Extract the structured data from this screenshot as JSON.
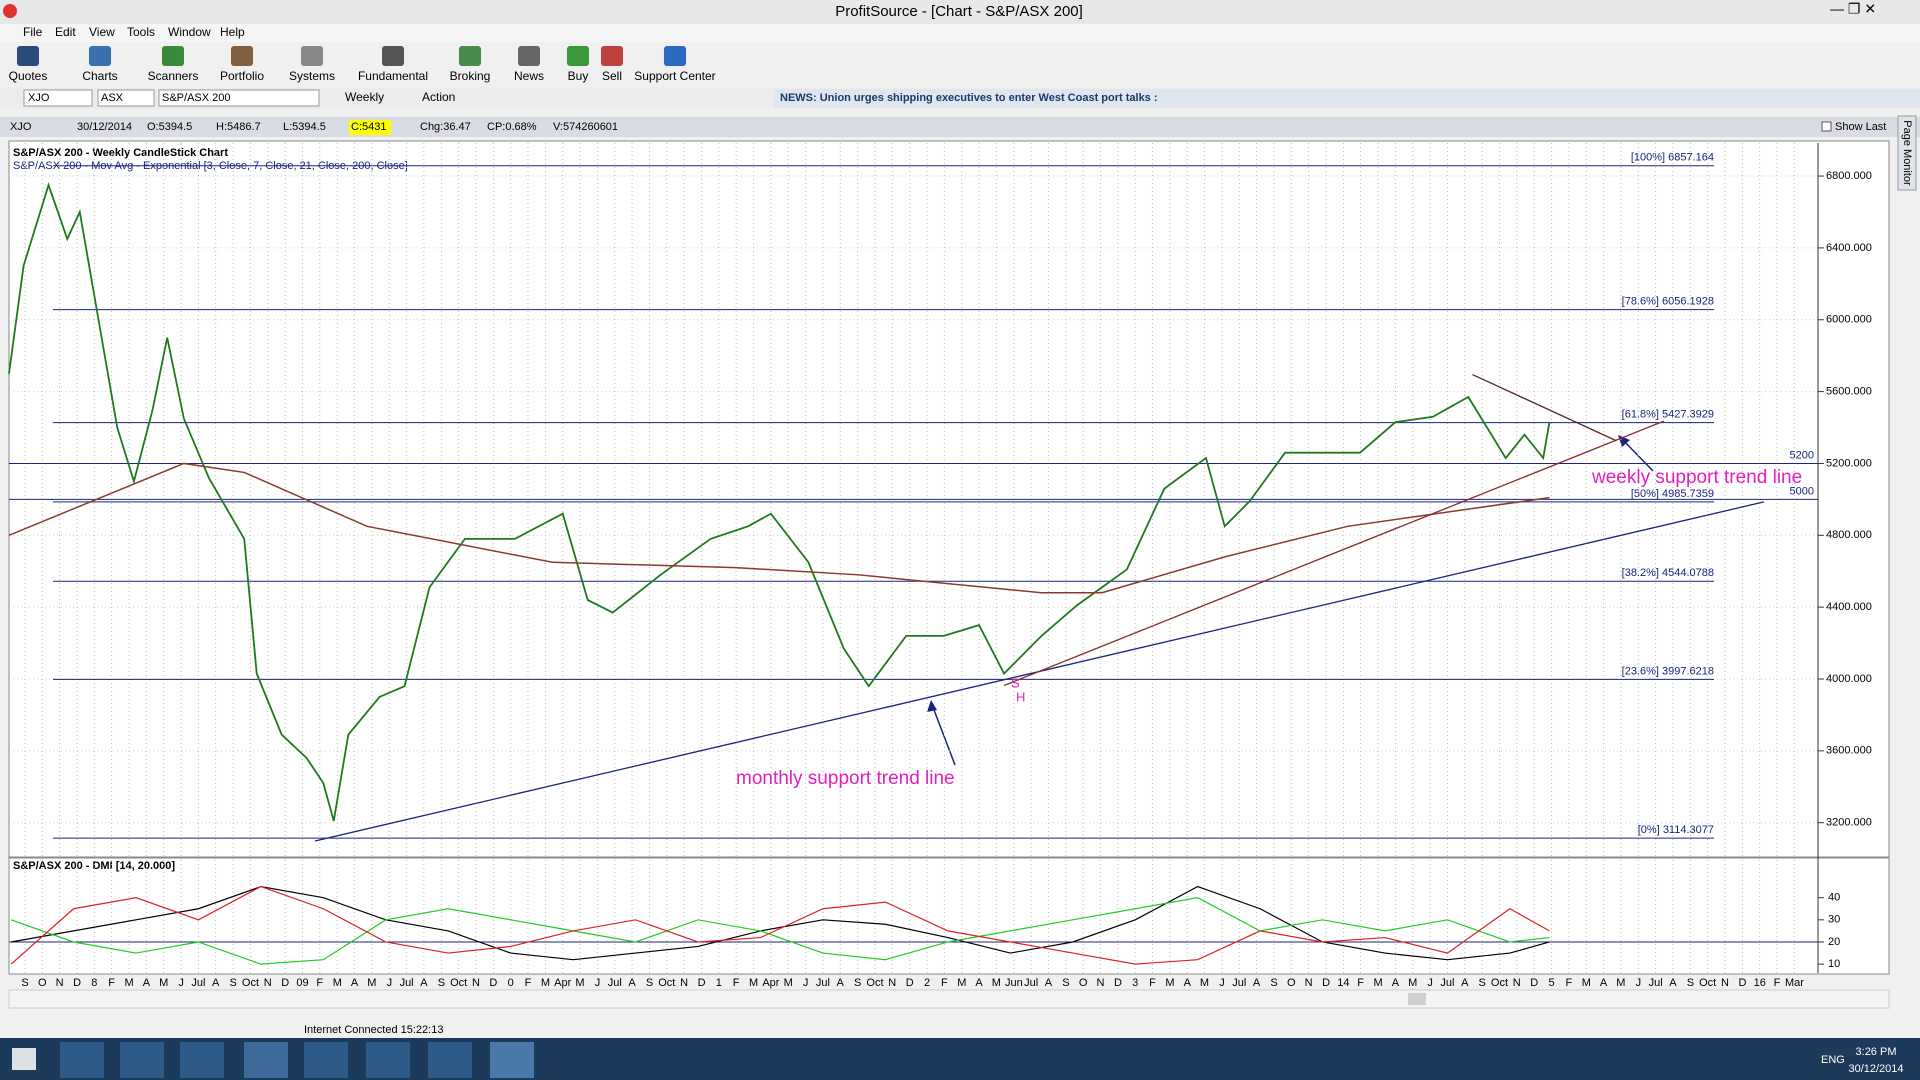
{
  "window": {
    "title": "ProfitSource - [Chart - S&P/ASX 200]"
  },
  "menu": [
    "File",
    "Edit",
    "View",
    "Tools",
    "Window",
    "Help"
  ],
  "toolbar": [
    "Quotes",
    "Charts",
    "Scanners",
    "Portfolio",
    "Systems",
    "Fundamental",
    "Broking",
    "News",
    "Buy",
    "Sell",
    "Support Center"
  ],
  "symbol_bar": {
    "code": "XJO",
    "exchange": "ASX",
    "name": "S&P/ASX 200",
    "period": "Weekly",
    "action": "Action",
    "news": "NEWS: Union urges shipping executives to enter West Coast port talks :"
  },
  "info_bar": {
    "code": "XJO",
    "date": "30/12/2014",
    "open": "O:5394.5",
    "high": "H:5486.7",
    "low": "L:5394.5",
    "close": "C:5431",
    "change": "Chg:36.47",
    "change_pct": "CP:0.68%",
    "volume": "V:574260601",
    "show_last": "Show Last"
  },
  "side_tab": "Page Monitor",
  "chart_data": [
    {
      "type": "line",
      "title": "S&P/ASX 200 - Weekly CandleStick Chart",
      "subtitle": "S&P/ASX 200 - Mov Avg - Exponential   [3, Close, 7, Close, 21, Close, 200, Close]",
      "xlim": [
        2007.59,
        2016.28
      ],
      "ylim": [
        3009,
        6984
      ],
      "yticks": [
        {
          "value": 3200,
          "label": "3200.000"
        },
        {
          "value": 3600,
          "label": "3600.000"
        },
        {
          "value": 4000,
          "label": "4000.000"
        },
        {
          "value": 4400,
          "label": "4400.000"
        },
        {
          "value": 4800,
          "label": "4800.000"
        },
        {
          "value": 5200,
          "label": "5200.000"
        },
        {
          "value": 5600,
          "label": "5600.000"
        },
        {
          "value": 6000,
          "label": "6000.000"
        },
        {
          "value": 6400,
          "label": "6400.000"
        },
        {
          "value": 6800,
          "label": "6800.000"
        }
      ],
      "grid": true,
      "series": [
        {
          "color": "#1f7a1f",
          "x": [
            2007.59,
            2007.66,
            2007.78,
            2007.87,
            2007.93,
            2008.02,
            2008.11,
            2008.19,
            2008.28,
            2008.35,
            2008.43,
            2008.55,
            2008.72,
            2008.78,
            2008.9,
            2009.02,
            2009.1,
            2009.15,
            2009.22,
            2009.37,
            2009.49,
            2009.61,
            2009.78,
            2010.02,
            2010.25,
            2010.37,
            2010.49,
            2010.72,
            2010.96,
            2011.14,
            2011.25,
            2011.43,
            2011.6,
            2011.72,
            2011.9,
            2012.08,
            2012.25,
            2012.37,
            2012.55,
            2012.72,
            2012.84,
            2012.96,
            2013.14,
            2013.34,
            2013.43,
            2013.55,
            2013.72,
            2013.9,
            2014.08,
            2014.25,
            2014.43,
            2014.6,
            2014.69,
            2014.78,
            2014.87,
            2014.96,
            2014.99
          ],
          "values": [
            5700,
            6300,
            6750,
            6450,
            6600,
            6000,
            5400,
            5100,
            5500,
            5900,
            5450,
            5120,
            4780,
            4030,
            3690,
            3560,
            3420,
            3210,
            3690,
            3900,
            3960,
            4510,
            4780,
            4780,
            4920,
            4440,
            4370,
            4580,
            4780,
            4850,
            4920,
            4650,
            4170,
            3960,
            4240,
            4240,
            4300,
            4030,
            4240,
            4410,
            4510,
            4610,
            5060,
            5230,
            4850,
            4990,
            5260,
            5260,
            5260,
            5430,
            5460,
            5570,
            5400,
            5230,
            5360,
            5230,
            5431
          ]
        },
        {
          "color": "#8b3a2a",
          "x": [
            2007.59,
            2008.43,
            2008.72,
            2009.31,
            2010.2,
            2011.08,
            2011.67,
            2012.55,
            2012.84,
            2013.43,
            2014.02,
            2014.99
          ],
          "values": [
            4800,
            5200,
            5150,
            4850,
            4650,
            4620,
            4580,
            4480,
            4480,
            4680,
            4850,
            5010
          ]
        }
      ],
      "levels": [
        {
          "value": 6857.164,
          "label": "[100%] 6857.164"
        },
        {
          "value": 6056.1928,
          "label": "[78.6%] 6056.1928"
        },
        {
          "value": 5427.3929,
          "label": "[61.8%] 5427.3929"
        },
        {
          "value": 4985.7359,
          "label": "[50%] 4985.7359"
        },
        {
          "value": 4544.0788,
          "label": "[38.2%] 4544.0788"
        },
        {
          "value": 3997.6218,
          "label": "[23.6%] 3997.6218"
        },
        {
          "value": 3114.3077,
          "label": "[0%] 3114.3077"
        }
      ],
      "hlines": [
        5200,
        5000
      ],
      "trendlines": [
        {
          "color": "#1a237e",
          "x": [
            2009.06,
            2016.02
          ],
          "y": [
            3098,
            4986
          ]
        },
        {
          "color": "#8b2a2a",
          "x": [
            2012.37,
            2015.54
          ],
          "y": [
            3964,
            5436
          ]
        },
        {
          "color": "#5a2a2a",
          "x": [
            2014.62,
            2015.31
          ],
          "y": [
            5695,
            5327
          ]
        }
      ],
      "annotations": [
        {
          "text": "monthly support trend line"
        },
        {
          "text": "weekly support trend line"
        },
        {
          "text": "S"
        },
        {
          "text": "H"
        }
      ]
    },
    {
      "type": "line",
      "title": "S&P/ASX 200 - DMI [14, 20.000]",
      "xlim": [
        2007.59,
        2016.28
      ],
      "ylim": [
        6,
        57
      ],
      "yticks": [
        10,
        20,
        30,
        40
      ],
      "threshold": 20,
      "x": [
        2007.6,
        2007.9,
        2008.2,
        2008.5,
        2008.8,
        2009.1,
        2009.4,
        2009.7,
        2010.0,
        2010.3,
        2010.6,
        2010.9,
        2011.2,
        2011.5,
        2011.8,
        2012.1,
        2012.4,
        2012.7,
        2013.0,
        2013.3,
        2013.6,
        2013.9,
        2014.2,
        2014.5,
        2014.8,
        2014.99
      ],
      "series": [
        {
          "color": "#000000",
          "values": [
            20,
            25,
            30,
            35,
            45,
            40,
            30,
            25,
            15,
            12,
            15,
            18,
            25,
            30,
            28,
            22,
            15,
            20,
            30,
            45,
            35,
            20,
            15,
            12,
            15,
            20
          ]
        },
        {
          "color": "#22cc22",
          "values": [
            30,
            20,
            15,
            20,
            10,
            12,
            30,
            35,
            30,
            25,
            20,
            30,
            25,
            15,
            12,
            20,
            25,
            30,
            35,
            40,
            25,
            30,
            25,
            30,
            20,
            22
          ]
        },
        {
          "color": "#dd2222",
          "values": [
            10,
            35,
            40,
            30,
            45,
            35,
            20,
            15,
            18,
            25,
            30,
            20,
            22,
            35,
            38,
            25,
            20,
            15,
            10,
            12,
            25,
            20,
            22,
            15,
            35,
            25
          ]
        }
      ],
      "xticks": [
        {
          "value": 2007.667,
          "label": "S"
        },
        {
          "value": 2007.75,
          "label": "O"
        },
        {
          "value": 2007.833,
          "label": "N"
        },
        {
          "value": 2007.917,
          "label": "D"
        },
        {
          "value": 2008,
          "label": "8"
        },
        {
          "value": 2008.083,
          "label": "F"
        },
        {
          "value": 2008.167,
          "label": "M"
        },
        {
          "value": 2008.25,
          "label": "A"
        },
        {
          "value": 2008.333,
          "label": "M"
        },
        {
          "value": 2008.417,
          "label": "J"
        },
        {
          "value": 2008.5,
          "label": "Jul"
        },
        {
          "value": 2008.583,
          "label": "A"
        },
        {
          "value": 2008.667,
          "label": "S"
        },
        {
          "value": 2008.75,
          "label": "Oct"
        },
        {
          "value": 2008.833,
          "label": "N"
        },
        {
          "value": 2008.917,
          "label": "D"
        },
        {
          "value": 2009,
          "label": "09"
        },
        {
          "value": 2009.083,
          "label": "F"
        },
        {
          "value": 2009.167,
          "label": "M"
        },
        {
          "value": 2009.25,
          "label": "A"
        },
        {
          "value": 2009.333,
          "label": "M"
        },
        {
          "value": 2009.417,
          "label": "J"
        },
        {
          "value": 2009.5,
          "label": "Jul"
        },
        {
          "value": 2009.583,
          "label": "A"
        },
        {
          "value": 2009.667,
          "label": "S"
        },
        {
          "value": 2009.75,
          "label": "Oct"
        },
        {
          "value": 2009.833,
          "label": "N"
        },
        {
          "value": 2009.917,
          "label": "D"
        },
        {
          "value": 2010,
          "label": "0"
        },
        {
          "value": 2010.083,
          "label": "F"
        },
        {
          "value": 2010.167,
          "label": "M"
        },
        {
          "value": 2010.25,
          "label": "Apr"
        },
        {
          "value": 2010.333,
          "label": "M"
        },
        {
          "value": 2010.417,
          "label": "J"
        },
        {
          "value": 2010.5,
          "label": "Jul"
        },
        {
          "value": 2010.583,
          "label": "A"
        },
        {
          "value": 2010.667,
          "label": "S"
        },
        {
          "value": 2010.75,
          "label": "Oct"
        },
        {
          "value": 2010.833,
          "label": "N"
        },
        {
          "value": 2010.917,
          "label": "D"
        },
        {
          "value": 2011,
          "label": "1"
        },
        {
          "value": 2011.083,
          "label": "F"
        },
        {
          "value": 2011.167,
          "label": "M"
        },
        {
          "value": 2011.25,
          "label": "Apr"
        },
        {
          "value": 2011.333,
          "label": "M"
        },
        {
          "value": 2011.417,
          "label": "J"
        },
        {
          "value": 2011.5,
          "label": "Jul"
        },
        {
          "value": 2011.583,
          "label": "A"
        },
        {
          "value": 2011.667,
          "label": "S"
        },
        {
          "value": 2011.75,
          "label": "Oct"
        },
        {
          "value": 2011.833,
          "label": "N"
        },
        {
          "value": 2011.917,
          "label": "D"
        },
        {
          "value": 2012,
          "label": "2"
        },
        {
          "value": 2012.083,
          "label": "F"
        },
        {
          "value": 2012.167,
          "label": "M"
        },
        {
          "value": 2012.25,
          "label": "A"
        },
        {
          "value": 2012.333,
          "label": "M"
        },
        {
          "value": 2012.417,
          "label": "Jun"
        },
        {
          "value": 2012.5,
          "label": "Jul"
        },
        {
          "value": 2012.583,
          "label": "A"
        },
        {
          "value": 2012.667,
          "label": "S"
        },
        {
          "value": 2012.75,
          "label": "O"
        },
        {
          "value": 2012.833,
          "label": "N"
        },
        {
          "value": 2012.917,
          "label": "D"
        },
        {
          "value": 2013,
          "label": "3"
        },
        {
          "value": 2013.083,
          "label": "F"
        },
        {
          "value": 2013.167,
          "label": "M"
        },
        {
          "value": 2013.25,
          "label": "A"
        },
        {
          "value": 2013.333,
          "label": "M"
        },
        {
          "value": 2013.417,
          "label": "J"
        },
        {
          "value": 2013.5,
          "label": "Jul"
        },
        {
          "value": 2013.583,
          "label": "A"
        },
        {
          "value": 2013.667,
          "label": "S"
        },
        {
          "value": 2013.75,
          "label": "O"
        },
        {
          "value": 2013.833,
          "label": "N"
        },
        {
          "value": 2013.917,
          "label": "D"
        },
        {
          "value": 2014,
          "label": "14"
        },
        {
          "value": 2014.083,
          "label": "F"
        },
        {
          "value": 2014.167,
          "label": "M"
        },
        {
          "value": 2014.25,
          "label": "A"
        },
        {
          "value": 2014.333,
          "label": "M"
        },
        {
          "value": 2014.417,
          "label": "J"
        },
        {
          "value": 2014.5,
          "label": "Jul"
        },
        {
          "value": 2014.583,
          "label": "A"
        },
        {
          "value": 2014.667,
          "label": "S"
        },
        {
          "value": 2014.75,
          "label": "Oct"
        },
        {
          "value": 2014.833,
          "label": "N"
        },
        {
          "value": 2014.917,
          "label": "D"
        },
        {
          "value": 2015,
          "label": "5"
        },
        {
          "value": 2015.083,
          "label": "F"
        },
        {
          "value": 2015.167,
          "label": "M"
        },
        {
          "value": 2015.25,
          "label": "A"
        },
        {
          "value": 2015.333,
          "label": "M"
        },
        {
          "value": 2015.417,
          "label": "J"
        },
        {
          "value": 2015.5,
          "label": "Jul"
        },
        {
          "value": 2015.583,
          "label": "A"
        },
        {
          "value": 2015.667,
          "label": "S"
        },
        {
          "value": 2015.75,
          "label": "Oct"
        },
        {
          "value": 2015.833,
          "label": "N"
        },
        {
          "value": 2015.917,
          "label": "D"
        },
        {
          "value": 2016,
          "label": "16"
        },
        {
          "value": 2016.083,
          "label": "F"
        },
        {
          "value": 2016.167,
          "label": "Mar"
        }
      ]
    }
  ],
  "status_bar": "Internet Connected 15:22:13",
  "taskbar": {
    "language": "ENG",
    "time": "3:26 PM",
    "date": "30/12/2014"
  }
}
